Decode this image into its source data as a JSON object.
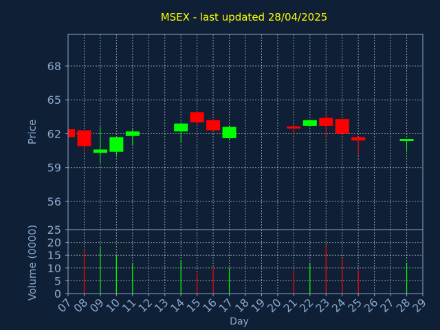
{
  "chart_data": {
    "type": "candlestick",
    "title": "MSEX - last updated 28/04/2025",
    "xlabel": "Day",
    "price_panel": {
      "ylabel": "Price",
      "ylim": [
        53.5,
        70.8
      ],
      "yticks": [
        56,
        59,
        62,
        65,
        68
      ]
    },
    "volume_panel": {
      "ylabel": "Volume (0000)",
      "ylim": [
        0,
        25
      ],
      "yticks": [
        0,
        5,
        10,
        15,
        20,
        25
      ]
    },
    "x_ticks": [
      "07",
      "08",
      "09",
      "10",
      "11",
      "12",
      "13",
      "14",
      "15",
      "16",
      "17",
      "18",
      "19",
      "20",
      "21",
      "22",
      "23",
      "24",
      "25",
      "26",
      "27",
      "28",
      "29"
    ],
    "x_range": [
      7,
      29
    ],
    "grid": true,
    "colors": {
      "up": "#00ff00",
      "down": "#ff0000",
      "title": "#ffff00",
      "axis": "#8aa8cc",
      "background": "#0f2036"
    },
    "candles": [
      {
        "day": 7,
        "open": 62.4,
        "high": 62.4,
        "low": 61.5,
        "close": 61.7,
        "volume": 7
      },
      {
        "day": 8,
        "open": 62.3,
        "high": 62.3,
        "low": 60.5,
        "close": 60.9,
        "volume": 17
      },
      {
        "day": 9,
        "open": 60.3,
        "high": 62.6,
        "low": 59.4,
        "close": 60.6,
        "volume": 18
      },
      {
        "day": 10,
        "open": 60.4,
        "high": 61.7,
        "low": 60.1,
        "close": 61.7,
        "volume": 15
      },
      {
        "day": 11,
        "open": 61.8,
        "high": 62.4,
        "low": 61.0,
        "close": 62.2,
        "volume": 12
      },
      {
        "day": 14,
        "open": 62.2,
        "high": 62.9,
        "low": 61.2,
        "close": 62.9,
        "volume": 13
      },
      {
        "day": 15,
        "open": 63.9,
        "high": 63.9,
        "low": 62.7,
        "close": 63.0,
        "volume": 8
      },
      {
        "day": 16,
        "open": 63.2,
        "high": 63.3,
        "low": 62.2,
        "close": 62.3,
        "volume": 10
      },
      {
        "day": 17,
        "open": 61.6,
        "high": 62.7,
        "low": 61.5,
        "close": 62.6,
        "volume": 10
      },
      {
        "day": 21,
        "open": 62.6,
        "high": 62.9,
        "low": 61.8,
        "close": 62.5,
        "volume": 9
      },
      {
        "day": 22,
        "open": 62.7,
        "high": 63.2,
        "low": 62.6,
        "close": 63.2,
        "volume": 12
      },
      {
        "day": 23,
        "open": 63.4,
        "high": 63.8,
        "low": 61.7,
        "close": 62.7,
        "volume": 19
      },
      {
        "day": 24,
        "open": 63.3,
        "high": 63.3,
        "low": 61.9,
        "close": 62.0,
        "volume": 14
      },
      {
        "day": 25,
        "open": 61.7,
        "high": 61.7,
        "low": 60.1,
        "close": 61.4,
        "volume": 9
      },
      {
        "day": 28,
        "open": 61.4,
        "high": 61.5,
        "low": 60.4,
        "close": 61.5,
        "volume": 12
      }
    ]
  }
}
